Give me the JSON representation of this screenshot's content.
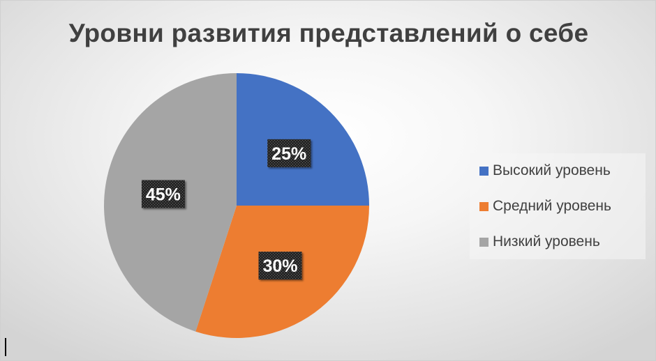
{
  "chart_data": {
    "type": "pie",
    "title": "Уровни развития представлений о себе",
    "categories": [
      "Высокий уровень",
      "Средний уровень",
      "Низкий уровень"
    ],
    "values": [
      25,
      30,
      45
    ],
    "labels": [
      "25%",
      "30%",
      "45%"
    ],
    "colors": [
      "#4472C4",
      "#ED7D31",
      "#A5A5A5"
    ],
    "start_angle_deg": 0,
    "direction": "clockwise",
    "legend": "right",
    "data_label_style": "white bold text on dark patterned box"
  }
}
